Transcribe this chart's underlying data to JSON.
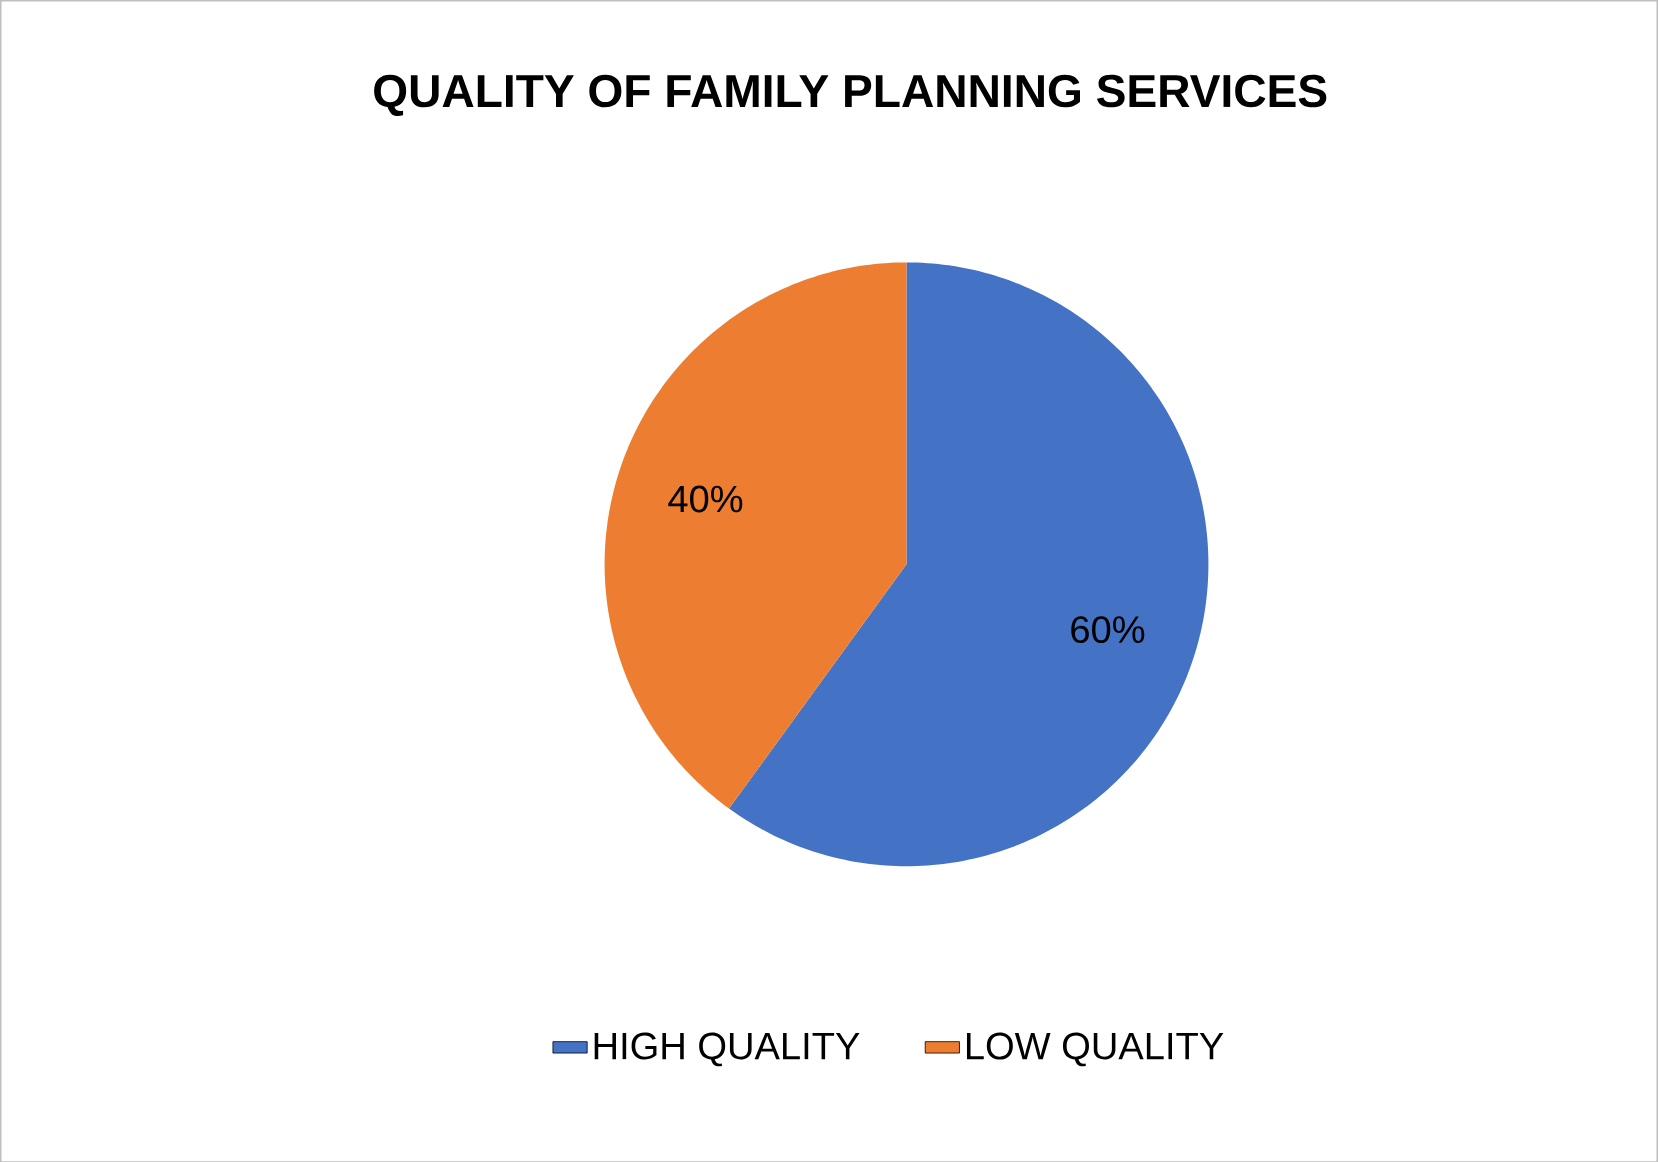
{
  "chart_data": {
    "type": "pie",
    "title": "QUALITY OF FAMILY PLANNING SERVICES",
    "categories": [
      "HIGH QUALITY",
      "LOW QUALITY"
    ],
    "values": [
      60,
      40
    ],
    "colors": [
      "#4472c4",
      "#ed7d31"
    ],
    "value_labels": [
      "60%",
      "40%"
    ],
    "legend": "bottom"
  }
}
